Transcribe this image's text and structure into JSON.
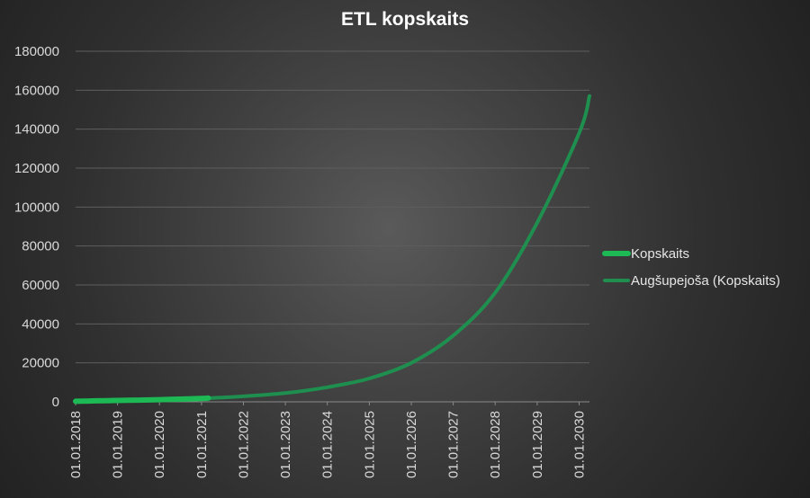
{
  "chart_data": {
    "type": "line",
    "title": "ETL kopskaits",
    "xlabel": "",
    "ylabel": "",
    "ylim": [
      0,
      180000
    ],
    "y_ticks": [
      0,
      20000,
      40000,
      60000,
      80000,
      100000,
      120000,
      140000,
      160000,
      180000
    ],
    "x_tick_labels": [
      "01.01.2018",
      "01.01.2019",
      "01.01.2020",
      "01.01.2021",
      "01.01.2022",
      "01.01.2023",
      "01.01.2024",
      "01.01.2025",
      "01.01.2026",
      "01.01.2027",
      "01.01.2028",
      "01.01.2029",
      "01.01.2030"
    ],
    "xlim": [
      "2018-01-01",
      "2030-04-01"
    ],
    "grid": "horizontal",
    "legend_position": "right",
    "series": [
      {
        "name": "Kopskaits",
        "color": "#1db954",
        "style": "thick",
        "x": [
          "2018-01-01",
          "2018-07-01",
          "2019-01-01",
          "2019-07-01",
          "2020-01-01",
          "2020-07-01",
          "2021-01-01",
          "2021-03-01"
        ],
        "values": [
          300,
          500,
          700,
          900,
          1100,
          1400,
          1700,
          1900
        ]
      },
      {
        "name": "Augšupejoša (Kopskaits)",
        "color": "#1f8f4f",
        "style": "trendline",
        "x": [
          "2021-03-01",
          "2022-01-01",
          "2023-01-01",
          "2024-01-01",
          "2025-01-01",
          "2026-01-01",
          "2027-01-01",
          "2028-01-01",
          "2029-01-01",
          "2030-01-01",
          "2030-04-01"
        ],
        "values": [
          1900,
          2800,
          4500,
          7500,
          12000,
          20000,
          34000,
          56000,
          92000,
          138000,
          157000
        ]
      }
    ]
  }
}
